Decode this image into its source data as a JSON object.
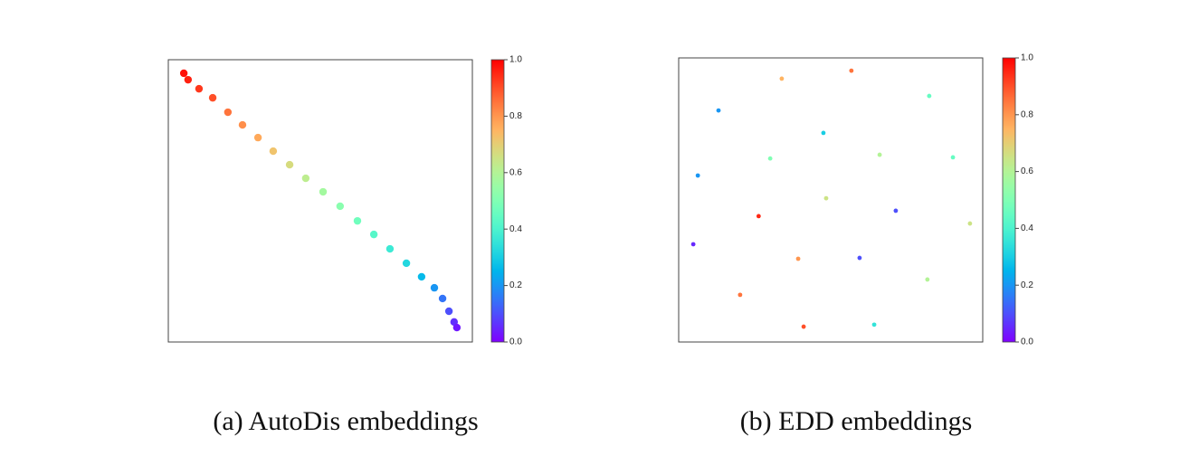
{
  "chart_data": [
    {
      "type": "scatter",
      "title": "(a)  AutoDis embeddings",
      "x": [
        0.051,
        0.065,
        0.101,
        0.146,
        0.196,
        0.244,
        0.295,
        0.345,
        0.399,
        0.452,
        0.509,
        0.565,
        0.622,
        0.676,
        0.729,
        0.783,
        0.833,
        0.875,
        0.902,
        0.923,
        0.94,
        0.949
      ],
      "values": [
        0.952,
        0.929,
        0.897,
        0.865,
        0.814,
        0.769,
        0.724,
        0.676,
        0.628,
        0.58,
        0.532,
        0.481,
        0.429,
        0.381,
        0.33,
        0.279,
        0.231,
        0.192,
        0.154,
        0.109,
        0.071,
        0.051
      ],
      "color_values": [
        0.98,
        0.96,
        0.93,
        0.9,
        0.85,
        0.81,
        0.77,
        0.72,
        0.67,
        0.62,
        0.57,
        0.52,
        0.47,
        0.42,
        0.37,
        0.32,
        0.26,
        0.2,
        0.15,
        0.1,
        0.06,
        0.03
      ],
      "xlim": [
        0,
        1
      ],
      "ylim": [
        0,
        1
      ],
      "colormap": "rainbow",
      "clim": [
        0,
        1
      ],
      "cticks": [
        {
          "value": 0,
          "label": "0.0"
        },
        {
          "value": 0.2,
          "label": "0.2"
        },
        {
          "value": 0.4,
          "label": "0.4"
        },
        {
          "value": 0.6,
          "label": "0.6"
        },
        {
          "value": 0.8,
          "label": "0.8"
        },
        {
          "value": 1,
          "label": "1.0"
        }
      ]
    },
    {
      "type": "scatter",
      "title": "(b)  EDD embeddings",
      "x": [
        0.339,
        0.568,
        0.824,
        0.131,
        0.476,
        0.301,
        0.661,
        0.902,
        0.063,
        0.485,
        0.263,
        0.714,
        0.958,
        0.048,
        0.393,
        0.595,
        0.818,
        0.202,
        0.411,
        0.643
      ],
      "values": [
        0.927,
        0.955,
        0.866,
        0.815,
        0.736,
        0.646,
        0.659,
        0.65,
        0.586,
        0.506,
        0.443,
        0.462,
        0.417,
        0.344,
        0.293,
        0.296,
        0.22,
        0.166,
        0.054,
        0.061
      ],
      "color_values": [
        0.75,
        0.85,
        0.45,
        0.2,
        0.3,
        0.5,
        0.6,
        0.45,
        0.2,
        0.65,
        0.95,
        0.1,
        0.65,
        0.05,
        0.8,
        0.1,
        0.6,
        0.85,
        0.9,
        0.35
      ],
      "xlim": [
        0,
        1
      ],
      "ylim": [
        0,
        1
      ],
      "colormap": "rainbow",
      "clim": [
        0,
        1
      ],
      "cticks": [
        {
          "value": 0,
          "label": "0.0"
        },
        {
          "value": 0.2,
          "label": "0.2"
        },
        {
          "value": 0.4,
          "label": "0.4"
        },
        {
          "value": 0.6,
          "label": "0.6"
        },
        {
          "value": 0.8,
          "label": "0.8"
        },
        {
          "value": 1,
          "label": "1.0"
        }
      ]
    }
  ]
}
